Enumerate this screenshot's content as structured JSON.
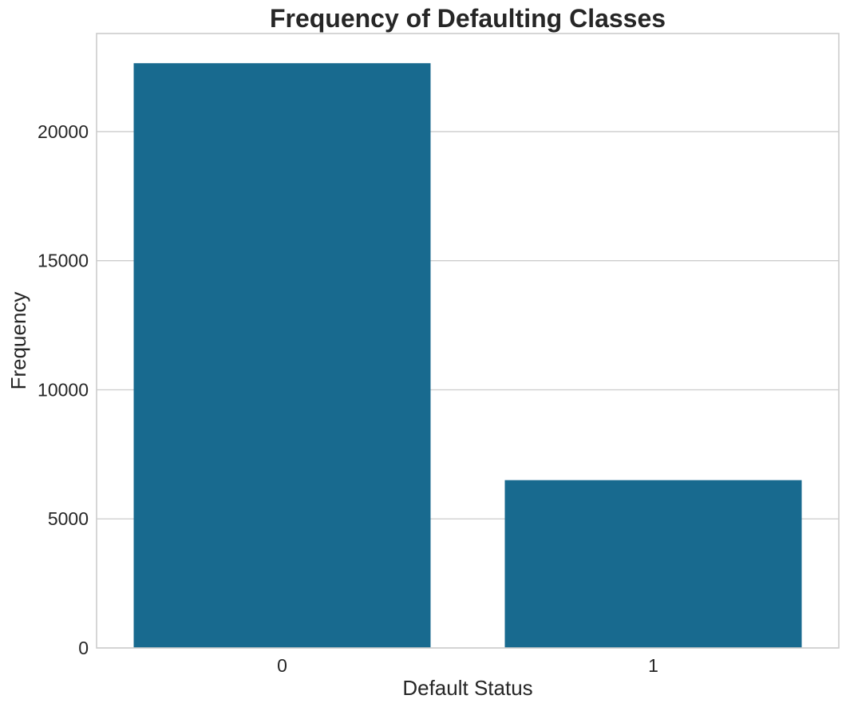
{
  "chart_data": {
    "type": "bar",
    "title": "Frequency  of Defaulting Classes",
    "xlabel": "Default Status",
    "ylabel": "Frequency",
    "categories": [
      "0",
      "1"
    ],
    "values": [
      22650,
      6500
    ],
    "ylim": [
      0,
      23800
    ],
    "yticks": [
      0,
      5000,
      10000,
      15000,
      20000
    ],
    "ytick_labels": [
      "0",
      "5000",
      "10000",
      "15000",
      "20000"
    ],
    "grid": "horizontal",
    "bar_color": "#186a8f",
    "grid_color": "#cccccc",
    "text_color": "#262626"
  }
}
